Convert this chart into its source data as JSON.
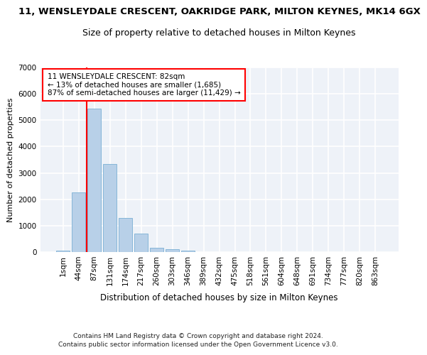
{
  "title_line1": "11, WENSLEYDALE CRESCENT, OAKRIDGE PARK, MILTON KEYNES, MK14 6GX",
  "title_line2": "Size of property relative to detached houses in Milton Keynes",
  "xlabel": "Distribution of detached houses by size in Milton Keynes",
  "ylabel": "Number of detached properties",
  "categories": [
    "1sqm",
    "44sqm",
    "87sqm",
    "131sqm",
    "174sqm",
    "217sqm",
    "260sqm",
    "303sqm",
    "346sqm",
    "389sqm",
    "432sqm",
    "475sqm",
    "518sqm",
    "561sqm",
    "604sqm",
    "648sqm",
    "691sqm",
    "734sqm",
    "777sqm",
    "820sqm",
    "863sqm"
  ],
  "values": [
    50,
    2250,
    5450,
    3350,
    1300,
    700,
    175,
    100,
    50,
    10,
    5,
    3,
    2,
    1,
    1,
    0,
    0,
    0,
    0,
    0,
    0
  ],
  "bar_color": "#b8d0e8",
  "bar_edge_color": "#7aafd4",
  "vline_color": "red",
  "vline_position": 1.5,
  "annotation_text_line1": "11 WENSLEYDALE CRESCENT: 82sqm",
  "annotation_text_line2": "← 13% of detached houses are smaller (1,685)",
  "annotation_text_line3": "87% of semi-detached houses are larger (11,429) →",
  "ylim": [
    0,
    7000
  ],
  "yticks": [
    0,
    1000,
    2000,
    3000,
    4000,
    5000,
    6000,
    7000
  ],
  "footer_text": "Contains HM Land Registry data © Crown copyright and database right 2024.\nContains public sector information licensed under the Open Government Licence v3.0.",
  "background_color": "#eef2f8",
  "grid_color": "#ffffff",
  "title_fontsize": 9.5,
  "subtitle_fontsize": 9,
  "ylabel_fontsize": 8,
  "xlabel_fontsize": 8.5,
  "tick_fontsize": 7.5,
  "annotation_fontsize": 7.5,
  "footer_fontsize": 6.5
}
